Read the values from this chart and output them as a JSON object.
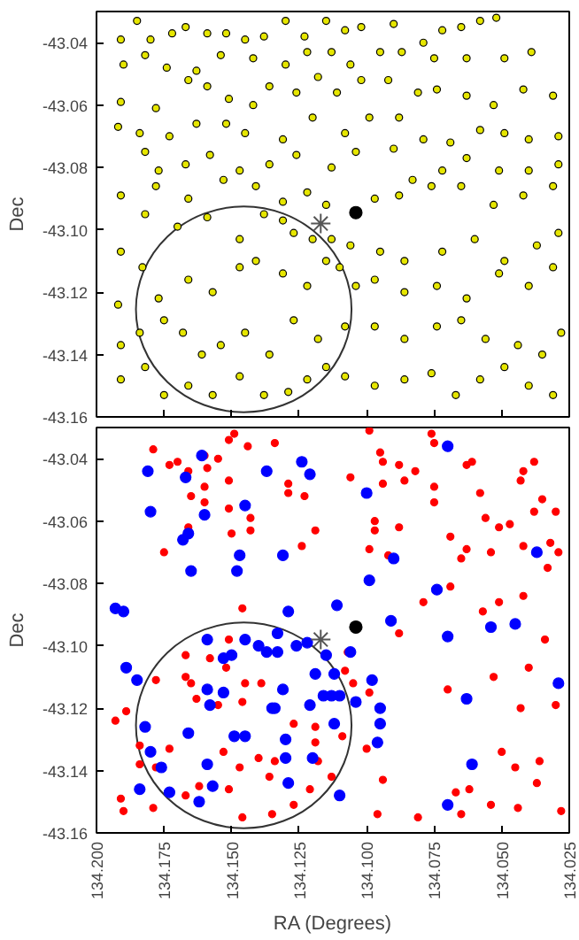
{
  "chart_data": [
    {
      "type": "scatter",
      "ylabel": "Dec",
      "xlim": [
        134.2,
        134.025
      ],
      "ylim": [
        -43.16,
        -43.03
      ],
      "tick_labels": "y",
      "grid": false,
      "xticks": [
        {
          "value": 134.2,
          "label": null
        },
        {
          "value": 134.175,
          "label": null
        },
        {
          "value": 134.15,
          "label": null
        },
        {
          "value": 134.125,
          "label": null
        },
        {
          "value": 134.1,
          "label": null
        },
        {
          "value": 134.075,
          "label": null
        },
        {
          "value": 134.05,
          "label": null
        },
        {
          "value": 134.025,
          "label": null
        }
      ],
      "yticks": [
        -43.16,
        -43.14,
        -43.12,
        {
          "value": -43.1,
          "label": "-43.10"
        },
        -43.08,
        -43.06,
        -43.04
      ],
      "series": [
        {
          "type": "scatter",
          "marker": "circle",
          "color": "#e6e600",
          "x": [
            134.191,
            134.185,
            134.18,
            134.172,
            134.167,
            134.159,
            134.152,
            134.145,
            134.138,
            134.13,
            134.123,
            134.115,
            134.108,
            134.102,
            134.09,
            134.079,
            134.072,
            134.065,
            134.058,
            134.052,
            134.19,
            134.182,
            134.174,
            134.163,
            134.154,
            134.142,
            134.13,
            134.122,
            134.113,
            134.106,
            134.095,
            134.087,
            134.075,
            134.063,
            134.049,
            134.039,
            134.191,
            134.178,
            134.166,
            134.159,
            134.151,
            134.142,
            134.136,
            134.126,
            134.118,
            134.111,
            134.102,
            134.092,
            134.081,
            134.074,
            134.063,
            134.053,
            134.042,
            134.031,
            134.192,
            134.184,
            134.173,
            134.163,
            134.152,
            134.145,
            134.131,
            134.12,
            134.108,
            134.099,
            134.088,
            134.079,
            134.069,
            134.058,
            134.049,
            134.04,
            134.029,
            134.182,
            134.177,
            134.167,
            134.158,
            134.147,
            134.136,
            134.126,
            134.113,
            134.104,
            134.09,
            134.083,
            134.072,
            134.063,
            134.051,
            134.04,
            134.029,
            134.191,
            134.178,
            134.166,
            134.153,
            134.141,
            134.131,
            134.122,
            134.115,
            134.097,
            134.088,
            134.076,
            134.065,
            134.053,
            134.042,
            134.031,
            134.191,
            134.182,
            134.17,
            134.159,
            134.147,
            134.138,
            134.131,
            134.127,
            134.12,
            134.113,
            134.106,
            134.095,
            134.086,
            134.072,
            134.06,
            134.049,
            134.037,
            134.029,
            134.192,
            134.183,
            134.177,
            134.166,
            134.157,
            134.147,
            134.141,
            134.131,
            134.122,
            134.115,
            134.11,
            134.104,
            134.097,
            134.086,
            134.074,
            134.063,
            134.051,
            134.04,
            134.031,
            134.191,
            134.184,
            134.175,
            134.168,
            134.161,
            134.154,
            134.145,
            134.136,
            134.127,
            134.118,
            134.108,
            134.097,
            134.086,
            134.074,
            134.065,
            134.056,
            134.044,
            134.035,
            134.028,
            134.191,
            134.182,
            134.175,
            134.166,
            134.157,
            134.147,
            134.138,
            134.129,
            134.122,
            134.115,
            134.108,
            134.097,
            134.086,
            134.076,
            134.067,
            134.058,
            134.049,
            134.04,
            134.031
          ],
          "values": [
            -43.039,
            -43.033,
            -43.039,
            -43.037,
            -43.035,
            -43.037,
            -43.037,
            -43.039,
            -43.038,
            -43.033,
            -43.038,
            -43.033,
            -43.036,
            -43.035,
            -43.034,
            -43.04,
            -43.036,
            -43.035,
            -43.033,
            -43.032,
            -43.047,
            -43.044,
            -43.048,
            -43.049,
            -43.044,
            -43.045,
            -43.047,
            -43.043,
            -43.043,
            -43.047,
            -43.043,
            -43.043,
            -43.045,
            -43.045,
            -43.045,
            -43.043,
            -43.059,
            -43.061,
            -43.052,
            -43.054,
            -43.058,
            -43.06,
            -43.054,
            -43.056,
            -43.051,
            -43.056,
            -43.052,
            -43.052,
            -43.056,
            -43.055,
            -43.057,
            -43.06,
            -43.055,
            -43.057,
            -43.067,
            -43.069,
            -43.07,
            -43.066,
            -43.066,
            -43.069,
            -43.071,
            -43.064,
            -43.069,
            -43.064,
            -43.064,
            -43.071,
            -43.072,
            -43.068,
            -43.069,
            -43.071,
            -43.07,
            -43.075,
            -43.081,
            -43.079,
            -43.076,
            -43.081,
            -43.079,
            -43.076,
            -43.08,
            -43.075,
            -43.074,
            -43.084,
            -43.081,
            -43.077,
            -43.081,
            -43.081,
            -43.079,
            -43.089,
            -43.086,
            -43.09,
            -43.084,
            -43.086,
            -43.091,
            -43.088,
            -43.092,
            -43.09,
            -43.089,
            -43.086,
            -43.086,
            -43.092,
            -43.089,
            -43.086,
            -43.107,
            -43.095,
            -43.099,
            -43.096,
            -43.103,
            -43.095,
            -43.097,
            -43.101,
            -43.103,
            -43.103,
            -43.105,
            -43.107,
            -43.11,
            -43.107,
            -43.103,
            -43.11,
            -43.105,
            -43.101,
            -43.124,
            -43.112,
            -43.122,
            -43.116,
            -43.12,
            -43.112,
            -43.11,
            -43.114,
            -43.118,
            -43.11,
            -43.112,
            -43.118,
            -43.116,
            -43.12,
            -43.118,
            -43.122,
            -43.114,
            -43.118,
            -43.112,
            -43.137,
            -43.133,
            -43.129,
            -43.133,
            -43.14,
            -43.137,
            -43.133,
            -43.14,
            -43.129,
            -43.135,
            -43.131,
            -43.131,
            -43.135,
            -43.131,
            -43.129,
            -43.135,
            -43.137,
            -43.14,
            -43.133,
            -43.148,
            -43.144,
            -43.153,
            -43.15,
            -43.153,
            -43.147,
            -43.153,
            -43.152,
            -43.148,
            -43.144,
            -43.147,
            -43.15,
            -43.148,
            -43.146,
            -43.153,
            -43.148,
            -43.144,
            -43.15,
            -43.153
          ]
        },
        {
          "type": "scatter",
          "marker": "circle",
          "color": "#000000",
          "x": [
            134.104
          ],
          "values": [
            -43.0945
          ]
        },
        {
          "type": "scatter",
          "marker": "cross",
          "color": "#555555",
          "x": [
            134.117
          ],
          "values": [
            -43.098
          ]
        }
      ]
    },
    {
      "type": "scatter",
      "xlabel": "RA (Degrees)",
      "ylabel": "Dec",
      "xlim": [
        134.2,
        134.025
      ],
      "ylim": [
        -43.16,
        -43.03
      ],
      "grid": false,
      "xticks": [
        {
          "value": 134.2,
          "label": "134.200"
        },
        134.175,
        {
          "value": 134.15,
          "label": "134.150"
        },
        134.125,
        {
          "value": 134.1,
          "label": "134.100"
        },
        134.075,
        {
          "value": 134.05,
          "label": "134.050"
        },
        134.025
      ],
      "yticks": [
        -43.16,
        -43.14,
        -43.12,
        {
          "value": -43.1,
          "label": "-43.10"
        },
        -43.08,
        -43.06,
        -43.04
      ],
      "series": [
        {
          "type": "scatter",
          "marker": "circle",
          "color": "#ff0000",
          "x": [
            134.179,
            134.173,
            134.17,
            134.16,
            134.155,
            134.151,
            134.149,
            134.144,
            134.134,
            134.166,
            134.159,
            134.151,
            134.165,
            134.16,
            134.16,
            134.151,
            134.143,
            134.143,
            134.15,
            134.166,
            134.175,
            134.129,
            134.123,
            134.129,
            134.119,
            134.124,
            134.106,
            134.099,
            134.095,
            134.094,
            134.088,
            134.082,
            134.094,
            134.086,
            134.075,
            134.076,
            134.075,
            134.075,
            134.097,
            134.097,
            134.088,
            134.099,
            134.092,
            134.069,
            134.063,
            134.065,
            134.063,
            134.061,
            134.058,
            134.056,
            134.051,
            134.047,
            134.054,
            134.042,
            134.042,
            134.043,
            134.038,
            134.035,
            134.038,
            134.03,
            134.032,
            134.029,
            134.033,
            134.069,
            134.079,
            134.088,
            134.051,
            134.057,
            134.042,
            134.034,
            134.04,
            134.03,
            134.043,
            134.053,
            134.07,
            134.146,
            134.151,
            134.167,
            134.158,
            134.152,
            134.178,
            134.167,
            134.165,
            134.145,
            134.139,
            134.146,
            134.163,
            134.155,
            134.189,
            134.193,
            134.173,
            134.184,
            134.184,
            134.178,
            134.153,
            134.147,
            134.14,
            134.134,
            134.127,
            134.119,
            134.119,
            134.118,
            134.109,
            134.108,
            134.107,
            134.105,
            134.099,
            134.1,
            134.094,
            134.096,
            134.081,
            134.067,
            134.065,
            134.062,
            134.054,
            134.044,
            134.028,
            134.037,
            134.05,
            134.045,
            134.036,
            134.19,
            134.191,
            134.179,
            134.167,
            134.162,
            134.151,
            134.146,
            134.135,
            134.127,
            134.121,
            134.113,
            134.136
          ],
          "values": [
            -43.037,
            -43.042,
            -43.041,
            -43.039,
            -43.04,
            -43.034,
            -43.032,
            -43.036,
            -43.035,
            -43.044,
            -43.043,
            -43.047,
            -43.052,
            -43.049,
            -43.054,
            -43.056,
            -43.059,
            -43.063,
            -43.064,
            -43.062,
            -43.07,
            -43.051,
            -43.052,
            -43.048,
            -43.063,
            -43.068,
            -43.046,
            -43.031,
            -43.038,
            -43.041,
            -43.042,
            -43.044,
            -43.048,
            -43.047,
            -43.035,
            -43.032,
            -43.049,
            -43.054,
            -43.06,
            -43.063,
            -43.062,
            -43.069,
            -43.071,
            -43.065,
            -43.069,
            -43.072,
            -43.042,
            -43.041,
            -43.051,
            -43.059,
            -43.062,
            -43.061,
            -43.07,
            -43.068,
            -43.044,
            -43.047,
            -43.041,
            -43.053,
            -43.057,
            -43.057,
            -43.067,
            -43.07,
            -43.075,
            -43.081,
            -43.086,
            -43.096,
            -43.086,
            -43.089,
            -43.084,
            -43.098,
            -43.107,
            -43.119,
            -43.12,
            -43.11,
            -43.114,
            -43.088,
            -43.098,
            -43.103,
            -43.104,
            -43.107,
            -43.111,
            -43.11,
            -43.112,
            -43.112,
            -43.112,
            -43.118,
            -43.117,
            -43.119,
            -43.121,
            -43.124,
            -43.133,
            -43.132,
            -43.138,
            -43.139,
            -43.134,
            -43.139,
            -43.136,
            -43.137,
            -43.125,
            -43.126,
            -43.131,
            -43.137,
            -43.129,
            -43.108,
            -43.102,
            -43.112,
            -43.115,
            -43.133,
            -43.143,
            -43.154,
            -43.155,
            -43.147,
            -43.154,
            -43.146,
            -43.151,
            -43.152,
            -43.153,
            -43.144,
            -43.134,
            -43.139,
            -43.137,
            -43.153,
            -43.149,
            -43.152,
            -43.148,
            -43.145,
            -43.146,
            -43.155,
            -43.154,
            -43.151,
            -43.146,
            -43.142,
            -43.142
          ]
        },
        {
          "type": "scatter",
          "marker": "circle",
          "color": "#0000ff",
          "x": [
            134.181,
            134.18,
            134.167,
            134.161,
            134.16,
            134.166,
            134.168,
            134.165,
            134.145,
            134.147,
            134.148,
            134.137,
            134.131,
            134.124,
            134.121,
            134.1,
            134.099,
            134.09,
            134.074,
            134.07,
            134.193,
            134.19,
            134.111,
            134.091,
            134.07,
            134.054,
            134.045,
            134.037,
            134.189,
            134.185,
            134.182,
            134.18,
            134.176,
            134.173,
            134.184,
            134.166,
            134.162,
            134.159,
            134.157,
            134.159,
            134.159,
            134.158,
            134.153,
            134.15,
            134.153,
            134.149,
            134.145,
            134.145,
            134.14,
            134.133,
            134.133,
            134.129,
            134.137,
            134.126,
            134.122,
            134.115,
            134.106,
            134.119,
            134.112,
            134.131,
            134.135,
            134.134,
            134.13,
            134.121,
            134.116,
            134.113,
            134.11,
            134.112,
            134.12,
            134.129,
            134.13,
            134.11,
            134.104,
            134.098,
            134.095,
            134.095,
            134.096,
            134.063,
            134.061,
            134.07,
            134.029
          ],
          "values": [
            -43.044,
            -43.057,
            -43.046,
            -43.039,
            -43.058,
            -43.064,
            -43.066,
            -43.076,
            -43.055,
            -43.071,
            -43.076,
            -43.044,
            -43.071,
            -43.041,
            -43.045,
            -43.051,
            -43.079,
            -43.072,
            -43.082,
            -43.036,
            -43.088,
            -43.089,
            -43.087,
            -43.092,
            -43.097,
            -43.094,
            -43.093,
            -43.07,
            -43.107,
            -43.111,
            -43.126,
            -43.134,
            -43.139,
            -43.147,
            -43.146,
            -43.128,
            -43.15,
            -43.138,
            -43.145,
            -43.098,
            -43.114,
            -43.119,
            -43.104,
            -43.103,
            -43.115,
            -43.129,
            -43.129,
            -43.098,
            -43.1,
            -43.096,
            -43.102,
            -43.089,
            -43.102,
            -43.1,
            -43.099,
            -43.103,
            -43.102,
            -43.109,
            -43.109,
            -43.114,
            -43.12,
            -43.12,
            -43.13,
            -43.119,
            -43.116,
            -43.116,
            -43.116,
            -43.125,
            -43.136,
            -43.144,
            -43.136,
            -43.148,
            -43.118,
            -43.111,
            -43.12,
            -43.125,
            -43.131,
            -43.117,
            -43.138,
            -43.151,
            -43.112
          ]
        },
        {
          "type": "scatter",
          "marker": "circle",
          "color": "#000000",
          "x": [
            134.104
          ],
          "values": [
            -43.094
          ]
        },
        {
          "type": "scatter",
          "marker": "cross",
          "color": "#555555",
          "x": [
            134.117
          ],
          "values": [
            -43.098
          ]
        }
      ]
    }
  ]
}
